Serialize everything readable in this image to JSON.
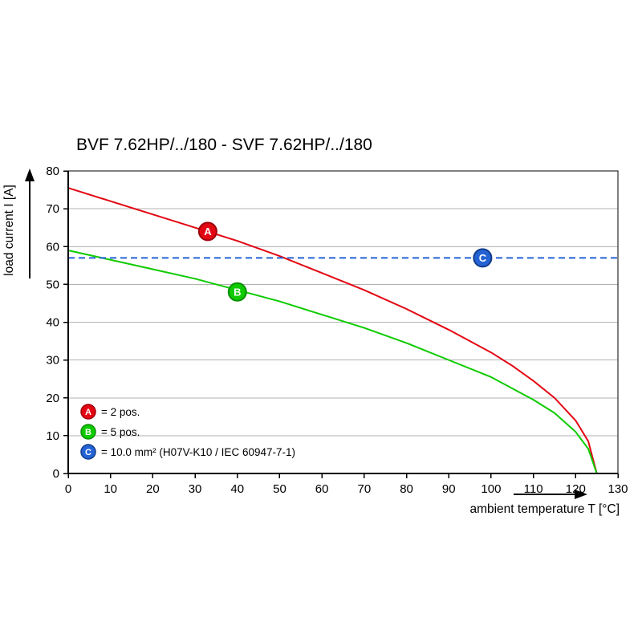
{
  "chart_data": {
    "type": "line",
    "title": "BVF 7.62HP/../180 - SVF 7.62HP/../180",
    "xlabel": "ambient temperature T [°C]",
    "ylabel": "load current I [A]",
    "xlim": [
      0,
      130
    ],
    "ylim": [
      0,
      80
    ],
    "x_ticks": [
      0,
      10,
      20,
      30,
      40,
      50,
      60,
      70,
      80,
      90,
      100,
      110,
      120,
      130
    ],
    "y_ticks": [
      0,
      10,
      20,
      30,
      40,
      50,
      60,
      70,
      80
    ],
    "grid": "horizontal-only",
    "legend_position": "bottom-left-inside",
    "series": [
      {
        "name": "A",
        "legend_label": "= 2 pos.",
        "color": "#e30613",
        "edge": "#9e0009",
        "style": "solid",
        "x": [
          0,
          10,
          20,
          30,
          40,
          50,
          60,
          70,
          80,
          90,
          100,
          105,
          110,
          115,
          120,
          123,
          125
        ],
        "y": [
          75.5,
          72,
          68.5,
          65,
          61.5,
          57.5,
          53,
          48.5,
          43.5,
          38,
          32,
          28.5,
          24.5,
          20,
          14,
          8.5,
          0
        ],
        "marker": {
          "x": 33,
          "y": 64
        }
      },
      {
        "name": "B",
        "legend_label": "= 5 pos.",
        "color": "#0ecb00",
        "edge": "#088f00",
        "style": "solid",
        "x": [
          0,
          10,
          20,
          30,
          40,
          50,
          60,
          70,
          80,
          90,
          100,
          105,
          110,
          115,
          120,
          123,
          125
        ],
        "y": [
          59,
          56.5,
          54,
          51.5,
          48.5,
          45.5,
          42,
          38.5,
          34.5,
          30,
          25.5,
          22.5,
          19.5,
          16,
          11,
          6.5,
          0
        ],
        "marker": {
          "x": 40,
          "y": 48
        }
      },
      {
        "name": "C",
        "legend_label": "= 10.0 mm² (H07V-K10 / IEC 60947-7-1)",
        "color": "#2563d4",
        "edge": "#123c8c",
        "style": "dashed",
        "x": [
          0,
          130
        ],
        "y": [
          57,
          57
        ],
        "marker": {
          "x": 98,
          "y": 57
        }
      }
    ]
  }
}
